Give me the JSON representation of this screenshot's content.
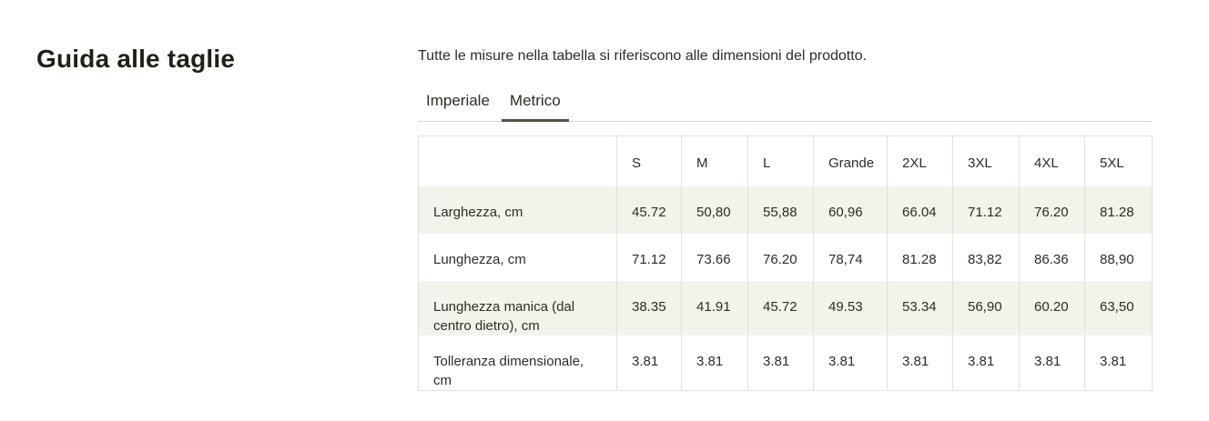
{
  "page": {
    "title": "Guida alle taglie",
    "subtitle": "Tutte le misure nella tabella si riferiscono alle dimensioni del prodotto."
  },
  "tabs": [
    {
      "label": "Imperiale",
      "active": false
    },
    {
      "label": "Metrico",
      "active": true
    }
  ],
  "table": {
    "columns": [
      "",
      "S",
      "M",
      "L",
      "Grande",
      "2XL",
      "3XL",
      "4XL",
      "5XL"
    ],
    "rows": [
      {
        "label": "Larghezza, cm",
        "values": [
          "45.72",
          "50,80",
          "55,88",
          "60,96",
          "66.04",
          "71.12",
          "76.20",
          "81.28"
        ]
      },
      {
        "label": "Lunghezza, cm",
        "values": [
          "71.12",
          "73.66",
          "76.20",
          "78,74",
          "81.28",
          "83,82",
          "86.36",
          "88,90"
        ]
      },
      {
        "label": "Lunghezza manica (dal centro dietro), cm",
        "values": [
          "38.35",
          "41.91",
          "45.72",
          "49.53",
          "53.34",
          "56,90",
          "60.20",
          "63,50"
        ]
      },
      {
        "label": "Tolleranza dimensionale, cm",
        "values": [
          "3.81",
          "3.81",
          "3.81",
          "3.81",
          "3.81",
          "3.81",
          "3.81",
          "3.81"
        ]
      }
    ]
  },
  "colors": {
    "heading_text": "#211f17",
    "body_text": "#2d2c25",
    "active_tab_underline": "#55513b",
    "tabs_divider": "#d9d9d3",
    "table_border": "#e2e2dc",
    "zebra_row_background": "#f3f3eb",
    "page_background": "#ffffff"
  }
}
